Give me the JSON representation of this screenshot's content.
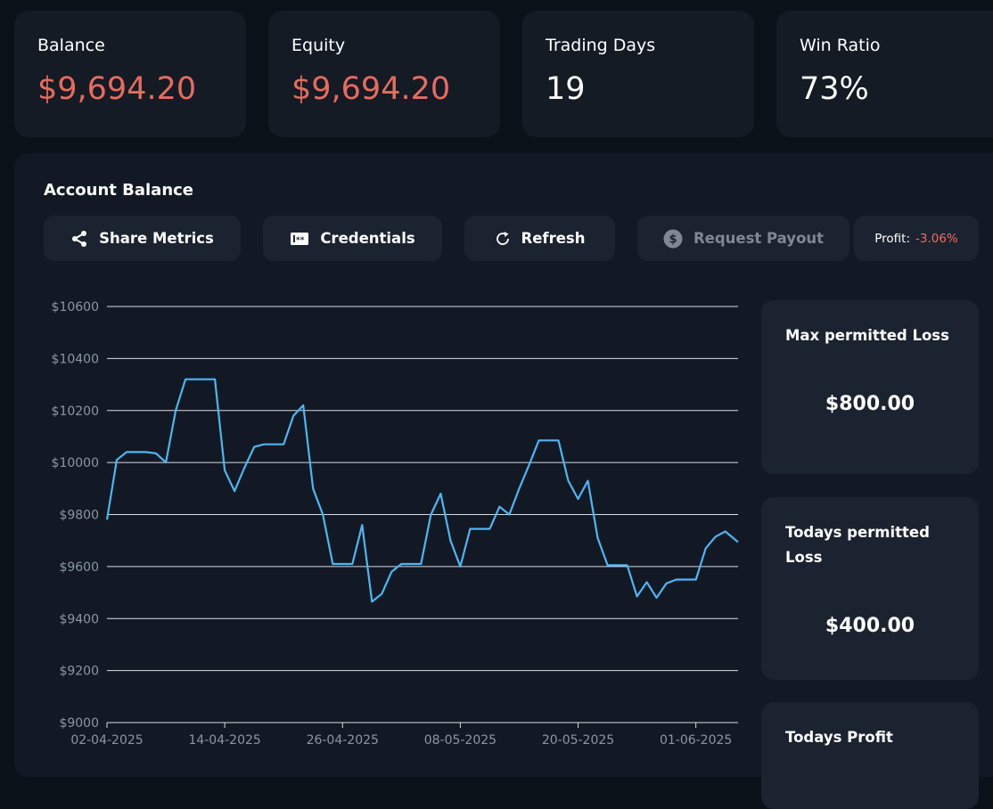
{
  "stats": [
    {
      "label": "Balance",
      "value": "$9,694.20",
      "negative": true
    },
    {
      "label": "Equity",
      "value": "$9,694.20",
      "negative": true
    },
    {
      "label": "Trading Days",
      "value": "19",
      "negative": false
    },
    {
      "label": "Win Ratio",
      "value": "73%",
      "negative": false
    }
  ],
  "panel": {
    "title": "Account Balance"
  },
  "toolbar": {
    "share_label": "Share Metrics",
    "credentials_label": "Credentials",
    "refresh_label": "Refresh",
    "payout_label": "Request Payout",
    "profit_label": "Profit:",
    "profit_value": "-3.06%"
  },
  "side_cards": [
    {
      "title": "Max permitted Loss",
      "value": "$800.00"
    },
    {
      "title": "Todays permitted Loss",
      "value": "$400.00"
    },
    {
      "title": "Todays Profit",
      "value": ""
    }
  ],
  "colors": {
    "negative": "#e76b5d",
    "line": "#4db6f2",
    "grid": "#d8dde3"
  },
  "chart_data": {
    "type": "line",
    "title": "Account Balance",
    "xlabel": "",
    "ylabel": "",
    "ylim": [
      9000,
      10600
    ],
    "yticks": [
      9000,
      9200,
      9400,
      9600,
      9800,
      10000,
      10200,
      10400,
      10600
    ],
    "ytick_labels": [
      "$9000",
      "$9200",
      "$9400",
      "$9600",
      "$9800",
      "$10000",
      "$10200",
      "$10400",
      "$10600"
    ],
    "xticks": [
      0,
      12,
      24,
      36,
      48,
      60
    ],
    "xtick_labels": [
      "02-04-2025",
      "14-04-2025",
      "26-04-2025",
      "08-05-2025",
      "20-05-2025",
      "01-06-2025"
    ],
    "xlim": [
      0,
      64.3
    ],
    "grid": true,
    "series": [
      {
        "name": "Balance",
        "x": [
          0,
          1,
          2,
          3,
          4,
          5,
          6,
          7,
          8,
          9,
          10,
          11,
          12,
          13,
          14,
          15,
          16,
          17,
          18,
          19,
          20,
          21,
          22,
          23,
          24,
          25,
          26,
          27,
          28,
          29,
          30,
          31,
          32,
          33,
          34,
          35,
          36,
          37,
          38,
          39,
          40,
          41,
          42,
          43,
          44,
          45,
          46,
          47,
          48,
          49,
          50,
          51,
          52,
          53,
          54,
          55,
          56,
          57,
          58,
          59,
          60,
          61,
          62,
          63,
          64.3
        ],
        "values": [
          9780,
          10010,
          10040,
          10040,
          10040,
          10035,
          10000,
          10200,
          10320,
          10320,
          10320,
          10320,
          9970,
          9890,
          9980,
          10060,
          10070,
          10070,
          10070,
          10180,
          10220,
          9900,
          9800,
          9610,
          9610,
          9610,
          9760,
          9465,
          9495,
          9580,
          9610,
          9610,
          9610,
          9800,
          9880,
          9700,
          9600,
          9745,
          9745,
          9745,
          9830,
          9800,
          9900,
          9990,
          10085,
          10085,
          10085,
          9930,
          9860,
          9930,
          9710,
          9605,
          9605,
          9605,
          9485,
          9540,
          9480,
          9535,
          9550,
          9550,
          9550,
          9670,
          9715,
          9735,
          9694
        ]
      }
    ]
  }
}
